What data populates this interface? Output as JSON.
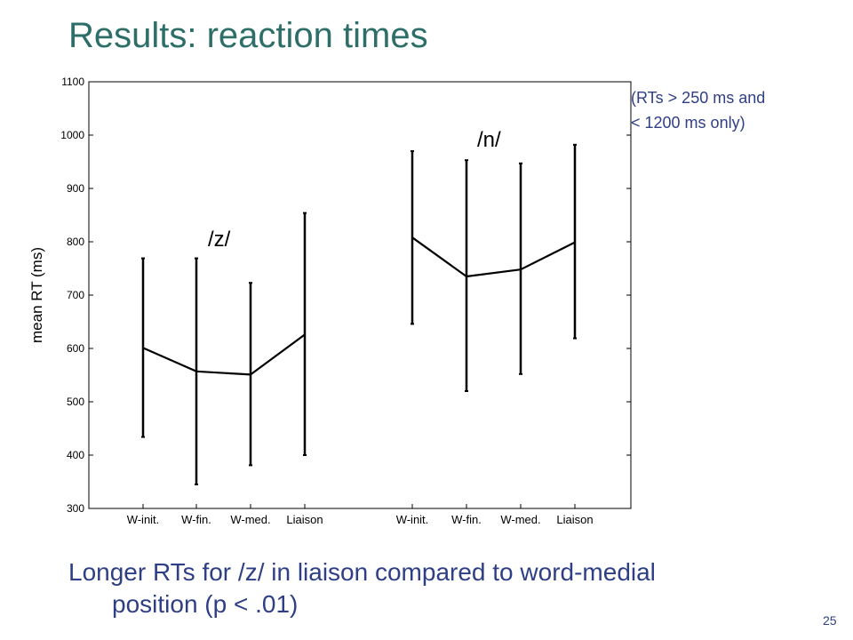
{
  "slide": {
    "title": "Results: reaction times",
    "note_lines": [
      "(RTs > 250 ms and",
      "< 1200 ms only)"
    ],
    "caption_lines": [
      "Longer RTs for /z/ in liaison compared to word-medial",
      "position (p < .01)"
    ],
    "page_number": "25",
    "colors": {
      "title": "#2e6e68",
      "text": "#2f3f86",
      "ink": "#000000"
    }
  },
  "chart_data": {
    "type": "line",
    "ylabel": "mean RT (ms)",
    "xlabel": "",
    "ylim": [
      300,
      1100
    ],
    "yticks": [
      300,
      400,
      500,
      600,
      700,
      800,
      900,
      1000,
      1100
    ],
    "grid": false,
    "error_bars": true,
    "groups": [
      {
        "label": "/z/",
        "categories": [
          "W-init.",
          "W-fin.",
          "W-med.",
          "Liaison"
        ],
        "means": [
          601,
          557,
          551,
          626
        ],
        "lower": [
          434,
          345,
          381,
          400
        ],
        "upper": [
          769,
          769,
          723,
          854
        ]
      },
      {
        "label": "/n/",
        "categories": [
          "W-init.",
          "W-fin.",
          "W-med.",
          "Liaison"
        ],
        "means": [
          808,
          735,
          748,
          799
        ],
        "lower": [
          646,
          520,
          552,
          619
        ],
        "upper": [
          970,
          953,
          947,
          982
        ]
      }
    ]
  }
}
